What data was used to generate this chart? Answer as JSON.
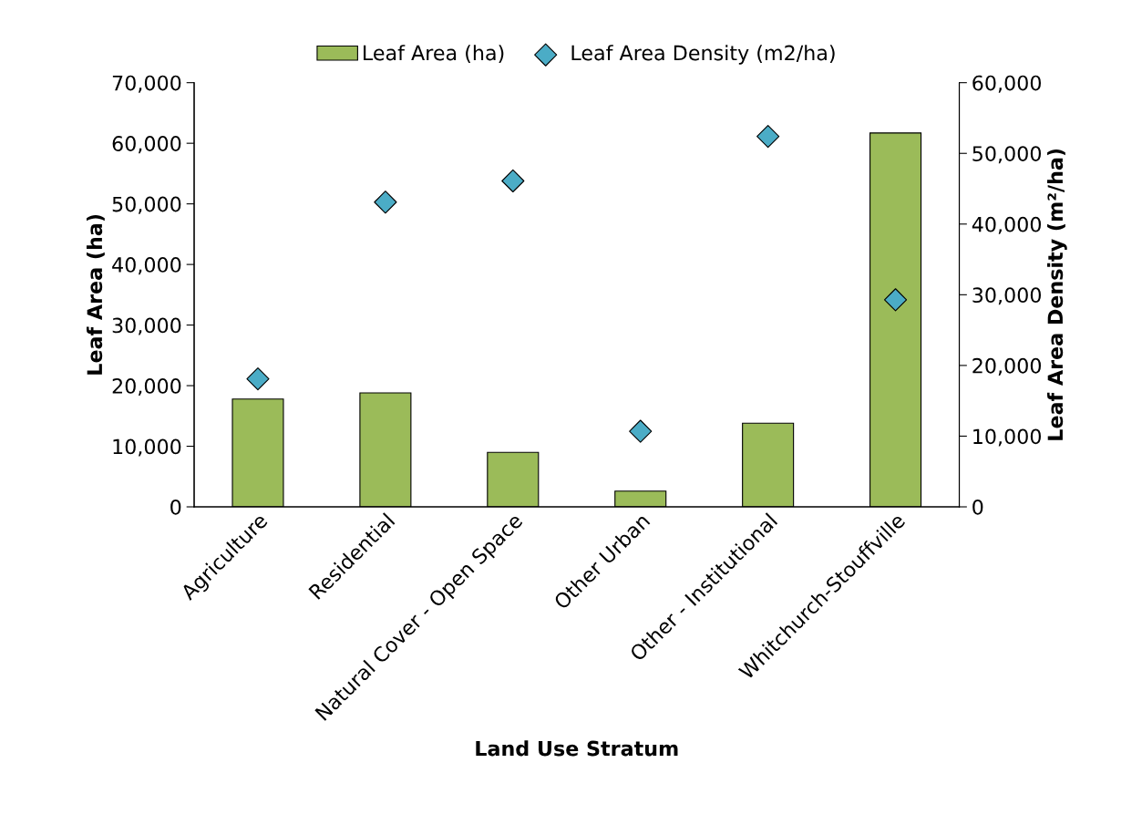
{
  "chart_data": {
    "type": "bar",
    "xlabel": "Land Use Stratum",
    "ylabel": "Leaf Area (ha)",
    "y2label": "Leaf Area Density (m²/ha)",
    "categories": [
      "Agriculture",
      "Residential",
      "Natural Cover - Open Space",
      "Other Urban",
      "Other - Institutional",
      "Whitchurch-Stouffville"
    ],
    "series": [
      {
        "name": "Leaf Area (ha)",
        "color": "#9bbb59",
        "values": [
          17800,
          18800,
          9000,
          2600,
          13800,
          61700
        ]
      },
      {
        "name": "Leaf Area Density (m2/ha)",
        "type": "scatter",
        "axis": "y2",
        "marker": "diamond",
        "color": "#4bacc6",
        "values": [
          18100,
          43100,
          46100,
          10700,
          52400,
          29300
        ]
      }
    ],
    "ylim": [
      0,
      70000
    ],
    "yticks": [
      {
        "value": 0,
        "label": "0"
      },
      {
        "value": 10000,
        "label": "10,000"
      },
      {
        "value": 20000,
        "label": "20,000"
      },
      {
        "value": 30000,
        "label": "30,000"
      },
      {
        "value": 40000,
        "label": "40,000"
      },
      {
        "value": 50000,
        "label": "50,000"
      },
      {
        "value": 60000,
        "label": "60,000"
      },
      {
        "value": 70000,
        "label": "70,000"
      }
    ],
    "y2lim": [
      0,
      60000
    ],
    "y2ticks": [
      {
        "value": 0,
        "label": "0"
      },
      {
        "value": 10000,
        "label": "10,000"
      },
      {
        "value": 20000,
        "label": "20,000"
      },
      {
        "value": 30000,
        "label": "30,000"
      },
      {
        "value": 40000,
        "label": "40,000"
      },
      {
        "value": 50000,
        "label": "50,000"
      },
      {
        "value": 60000,
        "label": "60,000"
      }
    ],
    "grid": false,
    "legend": "top"
  }
}
